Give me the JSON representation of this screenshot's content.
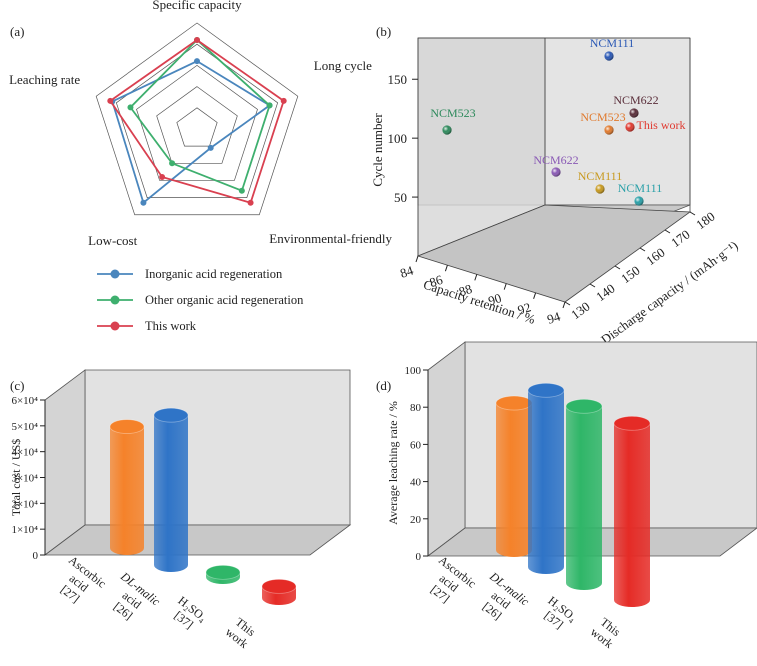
{
  "chart_data": [
    {
      "panel_label": "(a)",
      "type": "radar",
      "axes": [
        "Specific capacity",
        "Long cycle",
        "Environmental-friendly",
        "Low-cost",
        "Leaching rate"
      ],
      "max": 5,
      "grid_levels": 5,
      "series": [
        {
          "name": "Inorganic acid regeneration",
          "color": "#4a86bd",
          "values": [
            3.2,
            3.6,
            1.1,
            4.3,
            4.2
          ]
        },
        {
          "name": "Other organic acid regeneration",
          "color": "#3eaf6e",
          "values": [
            4.2,
            3.6,
            3.6,
            2.0,
            3.3
          ]
        },
        {
          "name": "This work",
          "color": "#d94050",
          "values": [
            4.2,
            4.3,
            4.3,
            2.8,
            4.3
          ]
        }
      ]
    },
    {
      "panel_label": "(b)",
      "type": "scatter3d",
      "xlabel": "Capacity retention / %",
      "ylabel": "Discharge capacity / (mAh·g⁻¹)",
      "zlabel": "Cycle number",
      "xticks": [
        84,
        86,
        88,
        90,
        92,
        94
      ],
      "yticks": [
        130,
        140,
        150,
        160,
        170,
        180
      ],
      "zticks": [
        50,
        100,
        150
      ],
      "points": [
        {
          "label": "NCM111",
          "color": "#2a58b5",
          "proj": [
            609,
            56
          ],
          "lx": 612,
          "ly": 47
        },
        {
          "label": "NCM523",
          "color": "#2e8a5c",
          "proj": [
            447,
            130
          ],
          "lx": 453,
          "ly": 117
        },
        {
          "label": "NCM622",
          "color": "#5a2e3a",
          "proj": [
            634,
            113
          ],
          "lx": 636,
          "ly": 104
        },
        {
          "label": "NCM523",
          "color": "#e07a2e",
          "proj": [
            609,
            130
          ],
          "lx": 603,
          "ly": 121
        },
        {
          "label": "This work",
          "color": "#e03a30",
          "proj": [
            630,
            127
          ],
          "lx": 661,
          "ly": 129
        },
        {
          "label": "NCM622",
          "color": "#8a5ab5",
          "proj": [
            556,
            172
          ],
          "lx": 556,
          "ly": 164
        },
        {
          "label": "NCM111",
          "color": "#c89a20",
          "proj": [
            600,
            189
          ],
          "lx": 600,
          "ly": 180
        },
        {
          "label": "NCM111",
          "color": "#2aa0a8",
          "proj": [
            639,
            201
          ],
          "lx": 640,
          "ly": 192
        }
      ]
    },
    {
      "panel_label": "(c)",
      "type": "bar3d",
      "ylabel": "Total cost / US$",
      "ylim": [
        0,
        60000
      ],
      "yticks": [
        "0",
        "1×10⁴",
        "2×10⁴",
        "3×10⁴",
        "4×10⁴",
        "5×10⁴",
        "6×10⁴"
      ],
      "categories": [
        {
          "lines": [
            "Ascorbic",
            "acid",
            "[27]"
          ]
        },
        {
          "lines": [
            "DL-malic",
            "acid",
            "[26]"
          ]
        },
        {
          "lines": [
            "H₂SO₄",
            "[37]"
          ]
        },
        {
          "lines": [
            "This",
            "work"
          ]
        }
      ],
      "values": [
        47000,
        58000,
        1800,
        4500
      ],
      "colors": [
        "#f5822a",
        "#2f74c7",
        "#2fb668",
        "#e52b26"
      ]
    },
    {
      "panel_label": "(d)",
      "type": "bar3d",
      "ylabel": "Average leaching rate / %",
      "ylim": [
        0,
        100
      ],
      "yticks": [
        "0",
        "20",
        "40",
        "60",
        "80",
        "100"
      ],
      "categories": [
        {
          "lines": [
            "Ascorbic",
            "acid",
            "[27]"
          ]
        },
        {
          "lines": [
            "DL-malic",
            "acid",
            "[26]"
          ]
        },
        {
          "lines": [
            "H₂SO₄",
            "[37]"
          ]
        },
        {
          "lines": [
            "This",
            "work"
          ]
        }
      ],
      "values": [
        79,
        95,
        95,
        95
      ],
      "colors": [
        "#f5822a",
        "#2f74c7",
        "#2fb668",
        "#e52b26"
      ]
    }
  ]
}
